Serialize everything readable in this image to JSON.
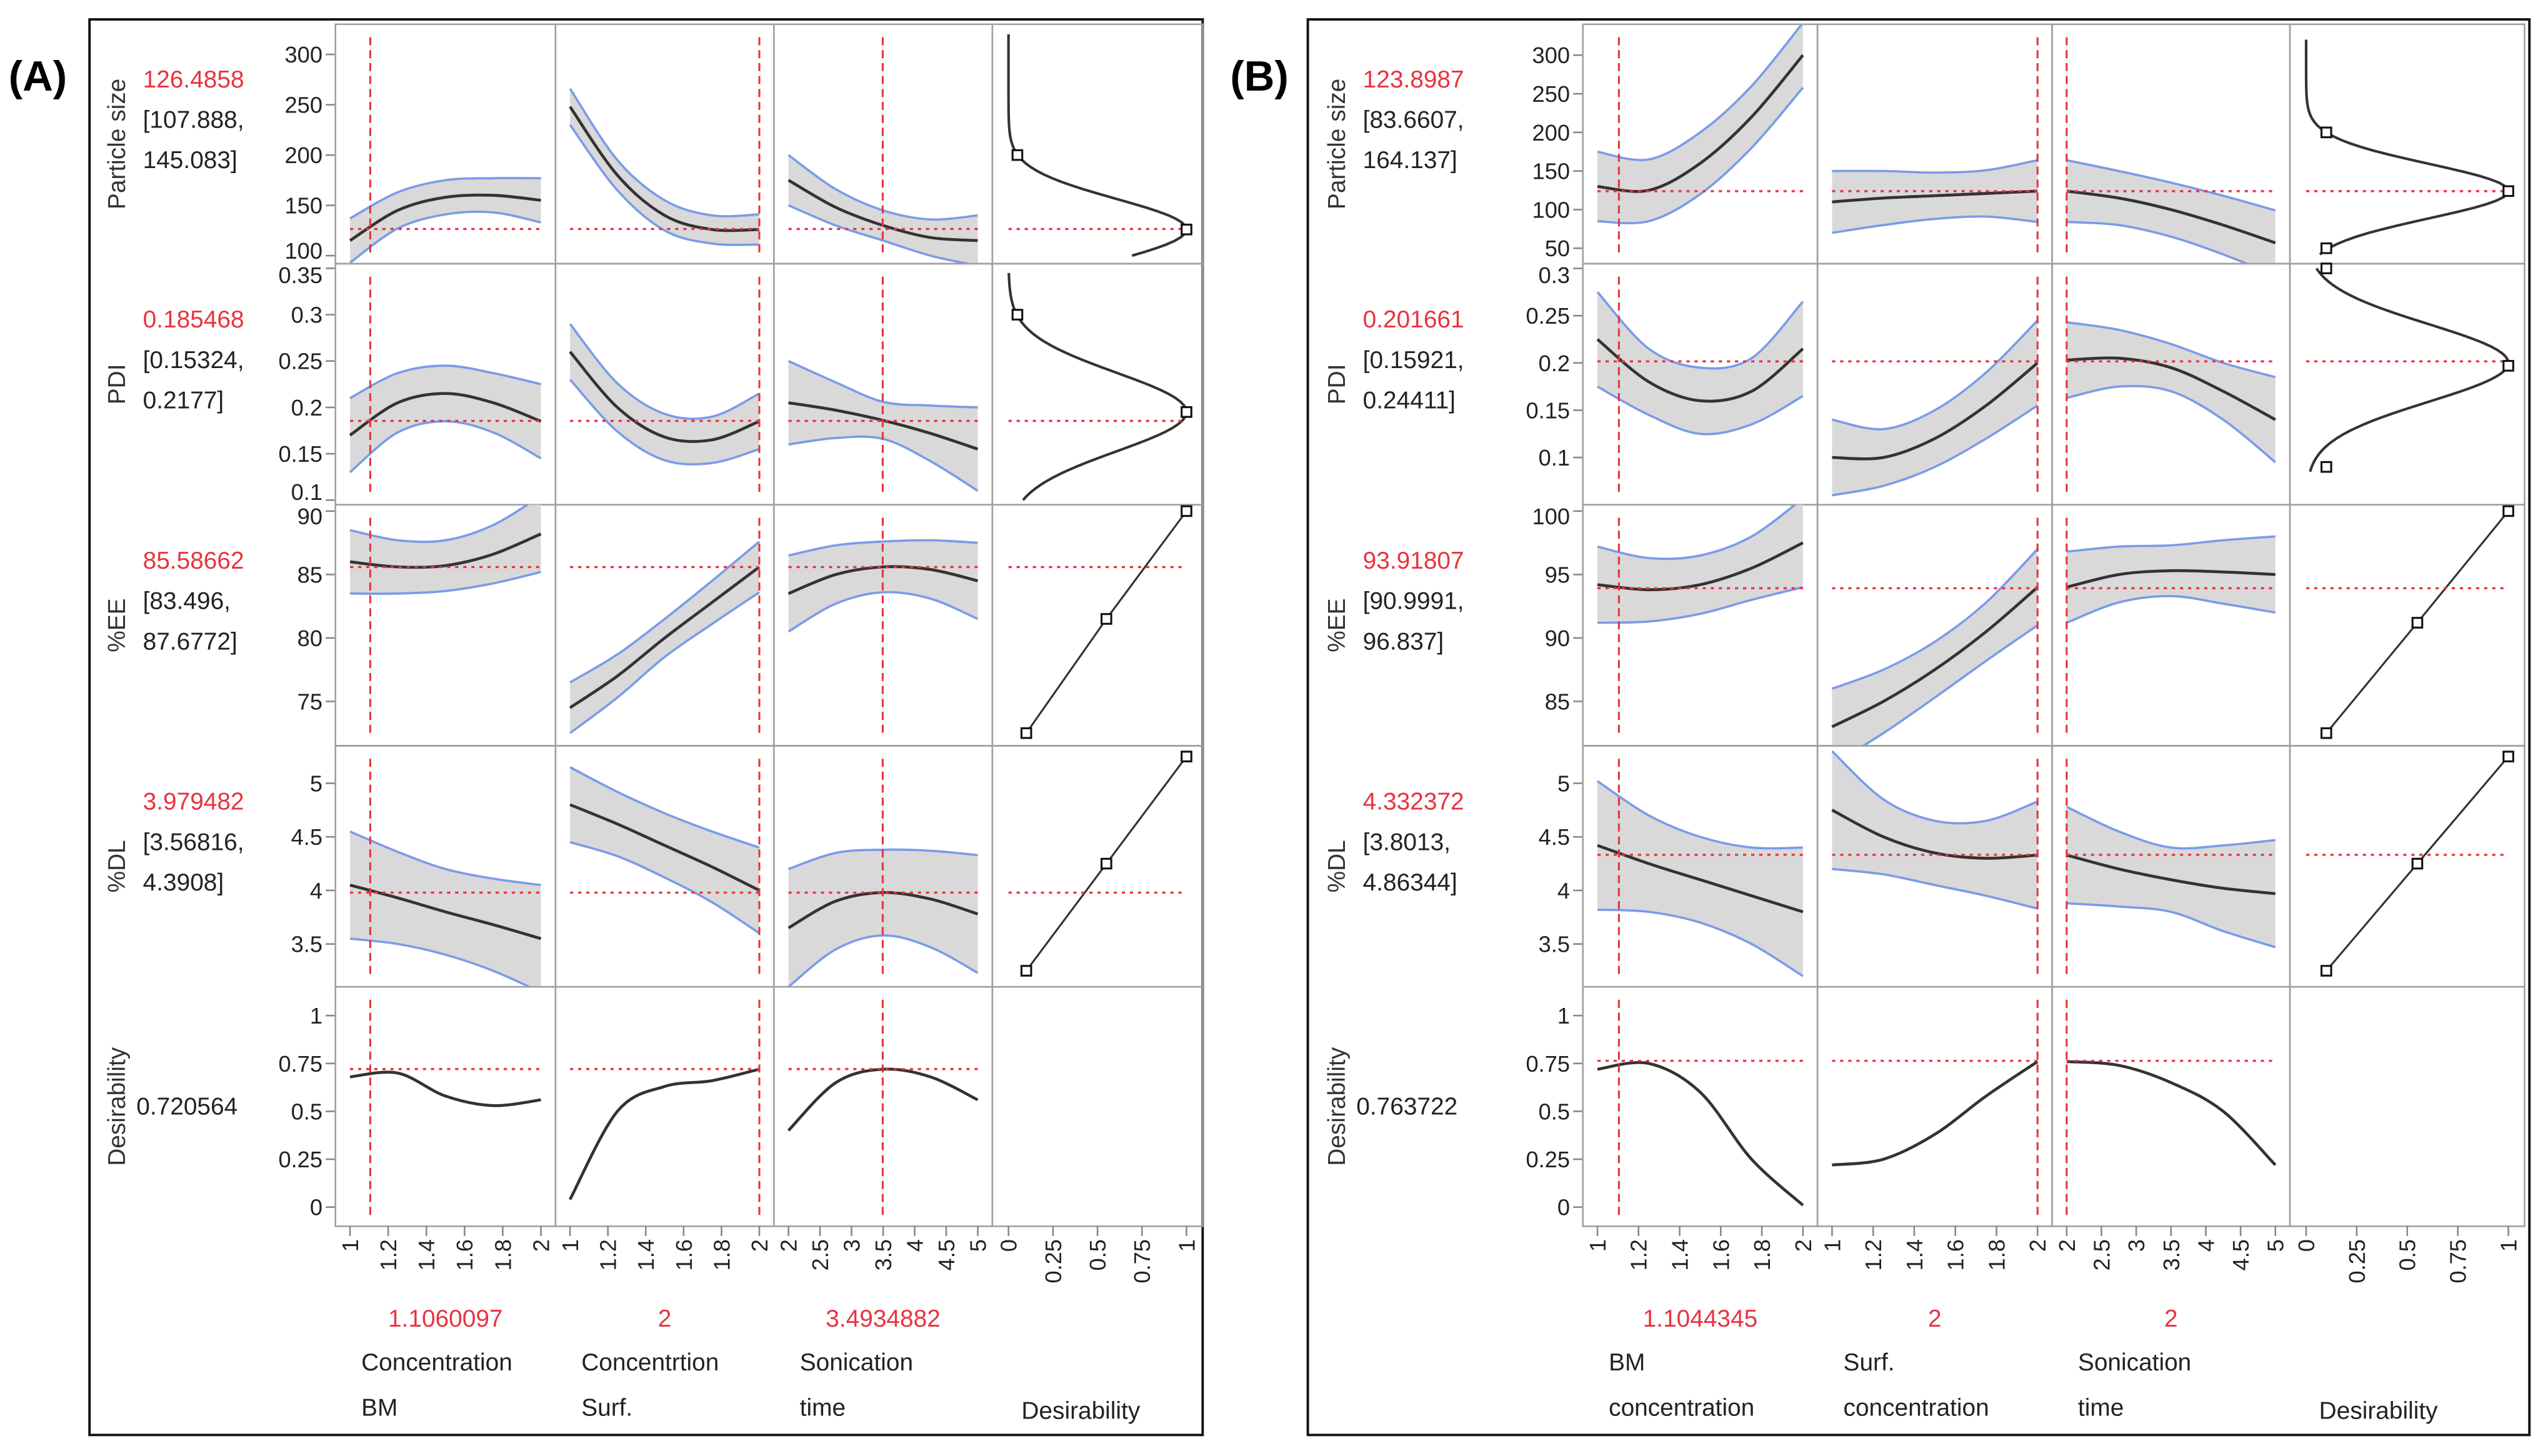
{
  "chart_data": [
    {
      "type": "line",
      "title": "(A)",
      "overall_desirability": "0.720564",
      "desirability_label": "Desirability",
      "factors": [
        {
          "name": [
            "Concentration",
            "BM"
          ],
          "current": "1.1060097",
          "current_value": 1.1060097,
          "xlim": [
            1,
            2
          ],
          "ticks": [
            "1",
            "1.2",
            "1.4",
            "1.6",
            "1.8",
            "2"
          ]
        },
        {
          "name": [
            "Concentrtion",
            "Surf."
          ],
          "current": "2",
          "current_value": 2,
          "xlim": [
            1,
            2
          ],
          "ticks": [
            "1",
            "1.2",
            "1.4",
            "1.6",
            "1.8",
            "2"
          ]
        },
        {
          "name": [
            "Sonication",
            "time"
          ],
          "current": "3.4934882",
          "current_value": 3.4934882,
          "xlim": [
            2,
            5
          ],
          "ticks": [
            "2",
            "2.5",
            "3",
            "3.5",
            "4",
            "4.5",
            "5"
          ]
        }
      ],
      "desirability_axis": {
        "xlim": [
          0,
          1
        ],
        "ticks": [
          "0",
          "0.25",
          "0.5",
          "0.75",
          "1"
        ]
      },
      "responses": [
        {
          "name": "Particle size",
          "value": "126.4858",
          "current": 126.4858,
          "ci": [
            "[107.888,",
            "145.083]"
          ],
          "ylim": [
            92,
            330
          ],
          "ticks": [
            100,
            150,
            200,
            250,
            300
          ],
          "curves": [
            {
              "mean": [
                115,
                145,
                158,
                160,
                155
              ],
              "hw": [
                22,
                18,
                17,
                17,
                22
              ]
            },
            {
              "mean": [
                248,
                180,
                140,
                126,
                126
              ],
              "hw": [
                18,
                15,
                15,
                14,
                15
              ]
            },
            {
              "mean": [
                175,
                148,
                130,
                118,
                115
              ],
              "hw": [
                25,
                18,
                15,
                18,
                25
              ]
            }
          ],
          "desir": {
            "kind": "gauss",
            "target": 126,
            "s": 43,
            "range": [
              100,
              320
            ],
            "points": [
              [
                0.05,
                200
              ],
              [
                1,
                126
              ]
            ]
          }
        },
        {
          "name": "PDI",
          "value": "0.185468",
          "current": 0.185468,
          "ci": [
            "[0.15324,",
            "0.2177]"
          ],
          "ylim": [
            0.095,
            0.355
          ],
          "ticks": [
            0.1,
            0.15,
            0.2,
            0.25,
            0.3,
            0.35
          ],
          "curves": [
            {
              "mean": [
                0.17,
                0.205,
                0.215,
                0.205,
                0.185
              ],
              "hw": [
                0.04,
                0.032,
                0.03,
                0.032,
                0.04
              ]
            },
            {
              "mean": [
                0.26,
                0.2,
                0.168,
                0.165,
                0.185
              ],
              "hw": [
                0.03,
                0.026,
                0.025,
                0.025,
                0.03
              ]
            },
            {
              "mean": [
                0.205,
                0.197,
                0.186,
                0.172,
                0.155
              ],
              "hw": [
                0.045,
                0.03,
                0.02,
                0.03,
                0.045
              ]
            }
          ],
          "desir": {
            "kind": "gauss",
            "target": 0.195,
            "s": 0.06,
            "range": [
              0.1,
              0.345
            ],
            "points": [
              [
                0.05,
                0.3
              ],
              [
                1,
                0.195
              ]
            ]
          }
        },
        {
          "name": "%EE",
          "value": "85.58662",
          "current": 85.58662,
          "ci": [
            "[83.496,",
            "87.6772]"
          ],
          "ylim": [
            71.5,
            90.5
          ],
          "ticks": [
            75,
            80,
            85,
            90
          ],
          "curves": [
            {
              "mean": [
                86,
                85.6,
                85.7,
                86.6,
                88.2
              ],
              "hw": [
                2.5,
                2.1,
                2,
                2.3,
                3
              ]
            },
            {
              "mean": [
                74.5,
                77,
                80,
                82.8,
                85.6
              ],
              "hw": [
                2,
                1.7,
                1.5,
                1.7,
                2
              ]
            },
            {
              "mean": [
                83.5,
                85,
                85.6,
                85.4,
                84.5
              ],
              "hw": [
                3,
                2.3,
                2,
                2.3,
                3
              ]
            }
          ],
          "desir": {
            "kind": "linear",
            "points": [
              [
                0.1,
                72.5
              ],
              [
                0.55,
                81.5
              ],
              [
                1,
                90
              ]
            ]
          }
        },
        {
          "name": "%DL",
          "value": "3.979482",
          "current": 3.979482,
          "ci": [
            "[3.56816,",
            "4.3908]"
          ],
          "ylim": [
            3.1,
            5.35
          ],
          "ticks": [
            3.5,
            4,
            4.5,
            5
          ],
          "curves": [
            {
              "mean": [
                4.05,
                3.93,
                3.8,
                3.68,
                3.55
              ],
              "hw": [
                0.5,
                0.43,
                0.4,
                0.43,
                0.5
              ]
            },
            {
              "mean": [
                4.8,
                4.62,
                4.42,
                4.22,
                4.0
              ],
              "hw": [
                0.35,
                0.3,
                0.3,
                0.33,
                0.4
              ]
            },
            {
              "mean": [
                3.65,
                3.9,
                3.98,
                3.92,
                3.78
              ],
              "hw": [
                0.55,
                0.45,
                0.4,
                0.45,
                0.55
              ]
            }
          ],
          "desir": {
            "kind": "linear",
            "points": [
              [
                0.1,
                3.25
              ],
              [
                0.55,
                4.25
              ],
              [
                1,
                5.25
              ]
            ]
          }
        },
        {
          "name": "Desirability",
          "value": "",
          "current": 0.720564,
          "ci": [],
          "ylim": [
            -0.1,
            1.15
          ],
          "ticks": [
            0,
            0.25,
            0.5,
            0.75,
            1
          ],
          "curves": [
            {
              "mean": [
                0.68,
                0.7,
                0.58,
                0.53,
                0.56
              ],
              "hw": [
                0,
                0,
                0,
                0,
                0
              ]
            },
            {
              "mean": [
                0.04,
                0.5,
                0.63,
                0.66,
                0.72
              ],
              "hw": [
                0,
                0,
                0,
                0,
                0
              ]
            },
            {
              "mean": [
                0.4,
                0.65,
                0.72,
                0.68,
                0.56
              ],
              "hw": [
                0,
                0,
                0,
                0,
                0
              ]
            }
          ],
          "desir": null
        }
      ]
    },
    {
      "type": "line",
      "title": "(B)",
      "overall_desirability": "0.763722",
      "desirability_label": "Desirability",
      "factors": [
        {
          "name": [
            "BM",
            "concentration"
          ],
          "current": "1.1044345",
          "current_value": 1.1044345,
          "xlim": [
            1,
            2
          ],
          "ticks": [
            "1",
            "1.2",
            "1.4",
            "1.6",
            "1.8",
            "2"
          ]
        },
        {
          "name": [
            "Surf.",
            "concentration"
          ],
          "current": "2",
          "current_value": 2,
          "xlim": [
            1,
            2
          ],
          "ticks": [
            "1",
            "1.2",
            "1.4",
            "1.6",
            "1.8",
            "2"
          ]
        },
        {
          "name": [
            "Sonication",
            "time"
          ],
          "current": "2",
          "current_value": 2,
          "xlim": [
            2,
            5
          ],
          "ticks": [
            "2",
            "2.5",
            "3",
            "3.5",
            "4",
            "4.5",
            "5"
          ]
        }
      ],
      "desirability_axis": {
        "xlim": [
          0,
          1
        ],
        "ticks": [
          "0",
          "0.25",
          "0.5",
          "0.75",
          "1"
        ]
      },
      "responses": [
        {
          "name": "Particle size",
          "value": "123.8987",
          "current": 123.8987,
          "ci": [
            "[83.6607,",
            "164.137]"
          ],
          "ylim": [
            30,
            340
          ],
          "ticks": [
            50,
            100,
            150,
            200,
            250,
            300
          ],
          "curves": [
            {
              "mean": [
                130,
                125,
                160,
                220,
                300
              ],
              "hw": [
                45,
                40,
                40,
                40,
                42
              ]
            },
            {
              "mean": [
                110,
                115,
                118,
                121,
                124
              ],
              "hw": [
                40,
                35,
                30,
                30,
                40
              ]
            },
            {
              "mean": [
                124,
                115,
                100,
                80,
                57
              ],
              "hw": [
                40,
                35,
                35,
                38,
                42
              ]
            }
          ],
          "desir": {
            "kind": "gauss",
            "target": 124,
            "s": 50,
            "range": [
              42,
              320
            ],
            "points": [
              [
                0.1,
                200
              ],
              [
                1,
                124
              ],
              [
                0.1,
                50
              ]
            ]
          }
        },
        {
          "name": "PDI",
          "value": "0.201661",
          "current": 0.201661,
          "ci": [
            "[0.15921,",
            "0.24411]"
          ],
          "ylim": [
            0.05,
            0.305
          ],
          "ticks": [
            0.1,
            0.15,
            0.2,
            0.25,
            0.3
          ],
          "curves": [
            {
              "mean": [
                0.225,
                0.18,
                0.16,
                0.17,
                0.215
              ],
              "hw": [
                0.05,
                0.035,
                0.035,
                0.035,
                0.05
              ]
            },
            {
              "mean": [
                0.1,
                0.1,
                0.12,
                0.155,
                0.2
              ],
              "hw": [
                0.04,
                0.03,
                0.03,
                0.035,
                0.045
              ]
            },
            {
              "mean": [
                0.203,
                0.205,
                0.195,
                0.17,
                0.14
              ],
              "hw": [
                0.04,
                0.03,
                0.025,
                0.03,
                0.045
              ]
            }
          ],
          "desir": {
            "kind": "gauss",
            "target": 0.2,
            "s": 0.058,
            "range": [
              0.085,
              0.3
            ],
            "points": [
              [
                0.1,
                0.3
              ],
              [
                1,
                0.197
              ],
              [
                0.1,
                0.09
              ]
            ]
          }
        },
        {
          "name": "%EE",
          "value": "93.91807",
          "current": 93.91807,
          "ci": [
            "[90.9991,",
            "96.837]"
          ],
          "ylim": [
            81.5,
            100.5
          ],
          "ticks": [
            85,
            90,
            95,
            100
          ],
          "curves": [
            {
              "mean": [
                94.2,
                93.8,
                94.2,
                95.5,
                97.5
              ],
              "hw": [
                3,
                2.5,
                2.3,
                2.5,
                3.5
              ]
            },
            {
              "mean": [
                83,
                85,
                87.5,
                90.5,
                94
              ],
              "hw": [
                3,
                2.5,
                2.2,
                2.3,
                3
              ]
            },
            {
              "mean": [
                94,
                95,
                95.3,
                95.2,
                95
              ],
              "hw": [
                2.8,
                2.2,
                2,
                2.5,
                3
              ]
            }
          ],
          "desir": {
            "kind": "linear",
            "points": [
              [
                0.1,
                82.5
              ],
              [
                0.55,
                91.2
              ],
              [
                1,
                100
              ]
            ]
          }
        },
        {
          "name": "%DL",
          "value": "4.332372",
          "current": 4.332372,
          "ci": [
            "[3.8013,",
            "4.86344]"
          ],
          "ylim": [
            3.1,
            5.35
          ],
          "ticks": [
            3.5,
            4,
            4.5,
            5
          ],
          "curves": [
            {
              "mean": [
                4.42,
                4.25,
                4.1,
                3.95,
                3.8
              ],
              "hw": [
                0.6,
                0.45,
                0.4,
                0.45,
                0.6
              ]
            },
            {
              "mean": [
                4.75,
                4.5,
                4.35,
                4.3,
                4.33
              ],
              "hw": [
                0.55,
                0.35,
                0.3,
                0.35,
                0.5
              ]
            },
            {
              "mean": [
                4.33,
                4.2,
                4.1,
                4.02,
                3.97
              ],
              "hw": [
                0.45,
                0.35,
                0.3,
                0.4,
                0.5
              ]
            }
          ],
          "desir": {
            "kind": "linear",
            "points": [
              [
                0.1,
                3.25
              ],
              [
                0.55,
                4.25
              ],
              [
                1,
                5.25
              ]
            ]
          }
        },
        {
          "name": "Desirability",
          "value": "",
          "current": 0.763722,
          "ci": [],
          "ylim": [
            -0.1,
            1.15
          ],
          "ticks": [
            0,
            0.25,
            0.5,
            0.75,
            1
          ],
          "curves": [
            {
              "mean": [
                0.72,
                0.75,
                0.6,
                0.25,
                0.01
              ],
              "hw": [
                0,
                0,
                0,
                0,
                0
              ]
            },
            {
              "mean": [
                0.22,
                0.25,
                0.38,
                0.58,
                0.76
              ],
              "hw": [
                0,
                0,
                0,
                0,
                0
              ]
            },
            {
              "mean": [
                0.76,
                0.74,
                0.65,
                0.5,
                0.22
              ],
              "hw": [
                0,
                0,
                0,
                0,
                0
              ]
            }
          ],
          "desir": null
        }
      ]
    }
  ],
  "colors": {
    "current": "#e8333f",
    "band": "#d9d9d9",
    "band_edge": "#7a9be8",
    "curve": "#333333",
    "grid": "#a0a0a0"
  }
}
